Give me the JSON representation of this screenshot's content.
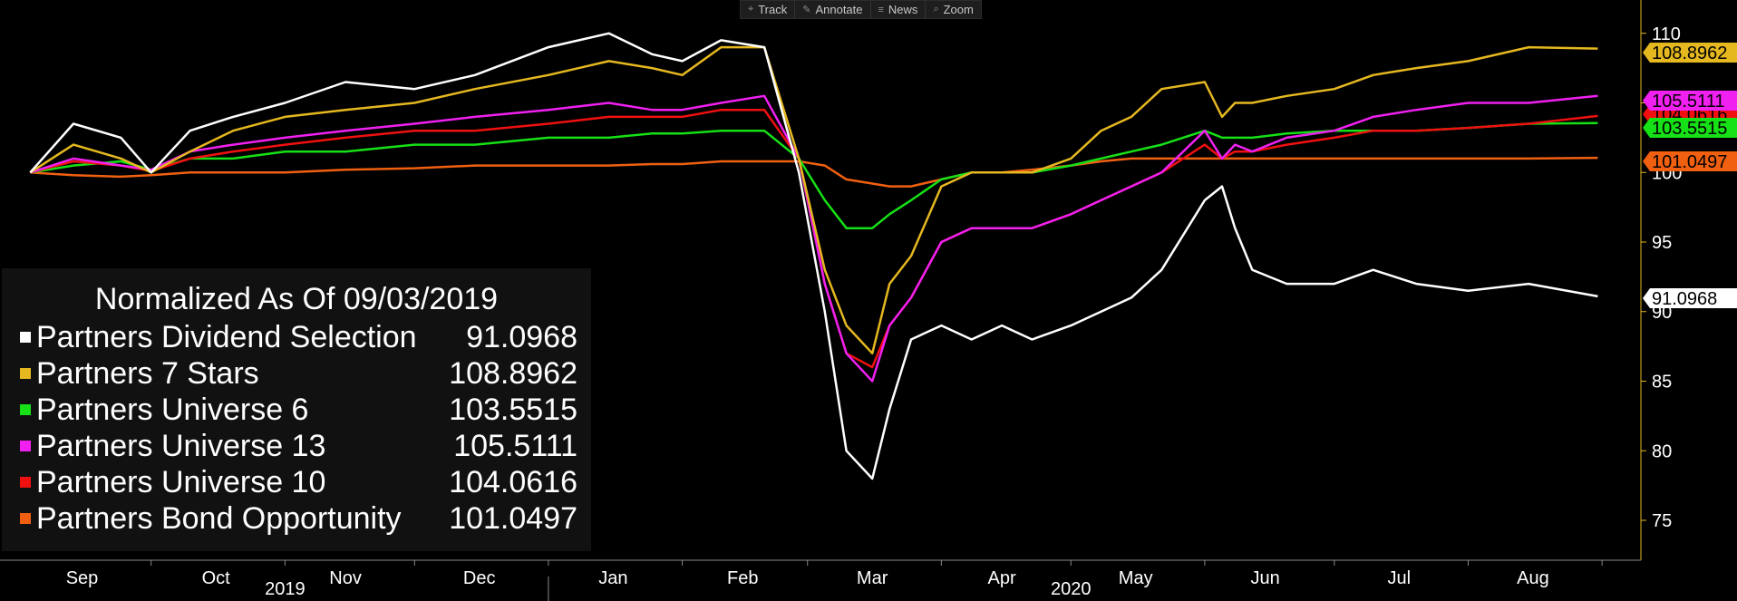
{
  "toolbar": {
    "items": [
      {
        "label": "Track",
        "icon": "crosshair-icon"
      },
      {
        "label": "Annotate",
        "icon": "pencil-icon"
      },
      {
        "label": "News",
        "icon": "news-icon"
      },
      {
        "label": "Zoom",
        "icon": "magnifier-icon"
      }
    ]
  },
  "legend": {
    "title": "Normalized As Of 09/03/2019",
    "rows": [
      {
        "name": "Partners Dividend Selection",
        "value": "91.0968",
        "color": "#ffffff"
      },
      {
        "name": "Partners 7 Stars",
        "value": "108.8962",
        "color": "#e5b820"
      },
      {
        "name": "Partners Universe 6",
        "value": "103.5515",
        "color": "#16e016"
      },
      {
        "name": "Partners Universe 13",
        "value": "105.5111",
        "color": "#f020f0"
      },
      {
        "name": "Partners Universe 10",
        "value": "104.0616",
        "color": "#f01010"
      },
      {
        "name": "Partners Bond Opportunity",
        "value": "101.0497",
        "color": "#f06010"
      }
    ]
  },
  "chart_data": {
    "type": "line",
    "title": "Normalized As Of 09/03/2019",
    "x_tick_labels": [
      "Sep",
      "Oct",
      "Nov",
      "Dec",
      "Jan",
      "Feb",
      "Mar",
      "Apr",
      "May",
      "Jun",
      "Jul",
      "Aug"
    ],
    "x_year_labels": [
      "2019",
      "2020"
    ],
    "y_ticks": [
      75,
      80,
      85,
      90,
      95,
      100,
      105,
      110
    ],
    "ylim": [
      72,
      111
    ],
    "axis_color": "#e5b820",
    "x": [
      "2019-09-03",
      "2019-09-13",
      "2019-09-24",
      "2019-10-01",
      "2019-10-10",
      "2019-10-20",
      "2019-11-01",
      "2019-11-15",
      "2019-12-01",
      "2019-12-15",
      "2020-01-01",
      "2020-01-15",
      "2020-01-25",
      "2020-02-01",
      "2020-02-10",
      "2020-02-20",
      "2020-02-28",
      "2020-03-05",
      "2020-03-10",
      "2020-03-16",
      "2020-03-20",
      "2020-03-25",
      "2020-04-01",
      "2020-04-08",
      "2020-04-15",
      "2020-04-22",
      "2020-05-01",
      "2020-05-08",
      "2020-05-15",
      "2020-05-22",
      "2020-06-01",
      "2020-06-05",
      "2020-06-08",
      "2020-06-12",
      "2020-06-20",
      "2020-07-01",
      "2020-07-10",
      "2020-07-20",
      "2020-08-01",
      "2020-08-15",
      "2020-08-31"
    ],
    "series": [
      {
        "name": "Partners Dividend Selection",
        "color": "#ffffff",
        "last_value": "91.0968",
        "values": [
          100,
          103.5,
          102.5,
          100,
          103,
          104,
          105,
          106.5,
          106,
          107,
          109,
          110,
          108.5,
          108,
          109.5,
          109,
          100,
          90,
          80,
          78,
          83,
          88,
          89,
          88,
          89,
          88,
          89,
          90,
          91,
          93,
          98,
          99,
          96,
          93,
          92,
          92,
          93,
          92,
          91.5,
          92,
          91.1
        ]
      },
      {
        "name": "Partners 7 Stars",
        "color": "#e5b820",
        "last_value": "108.8962",
        "values": [
          100,
          102,
          101,
          100,
          101.5,
          103,
          104,
          104.5,
          105,
          106,
          107,
          108,
          107.5,
          107,
          109,
          109,
          101,
          93,
          89,
          87,
          92,
          94,
          99,
          100,
          100,
          100,
          101,
          103,
          104,
          106,
          106.5,
          104,
          105,
          105,
          105.5,
          106,
          107,
          107.5,
          108,
          109,
          108.9
        ]
      },
      {
        "name": "Partners Universe 6",
        "color": "#16e016",
        "last_value": "103.5515",
        "values": [
          100,
          100.5,
          100.8,
          100.2,
          101,
          101,
          101.5,
          101.5,
          102,
          102,
          102.5,
          102.5,
          102.8,
          102.8,
          103,
          103,
          101,
          98,
          96,
          96,
          97,
          98,
          99.5,
          100,
          100,
          100,
          100.5,
          101,
          101.5,
          102,
          103,
          102.5,
          102.5,
          102.5,
          102.8,
          103,
          103,
          103,
          103.2,
          103.5,
          103.55
        ]
      },
      {
        "name": "Partners Universe 13",
        "color": "#f020f0",
        "last_value": "105.5111",
        "values": [
          100,
          101,
          100.5,
          100.2,
          101.5,
          102,
          102.5,
          103,
          103.5,
          104,
          104.5,
          105,
          104.5,
          104.5,
          105,
          105.5,
          101,
          92,
          87,
          85,
          89,
          91,
          95,
          96,
          96,
          96,
          97,
          98,
          99,
          100,
          103,
          101,
          102,
          101.5,
          102.5,
          103,
          104,
          104.5,
          105,
          105,
          105.5
        ]
      },
      {
        "name": "Partners Universe 10",
        "color": "#f01010",
        "last_value": "104.0616",
        "values": [
          100,
          100.8,
          100.5,
          100.1,
          101,
          101.5,
          102,
          102.5,
          103,
          103,
          103.5,
          104,
          104,
          104,
          104.5,
          104.5,
          101,
          92,
          87,
          86,
          89,
          91,
          95,
          96,
          96,
          96,
          97,
          98,
          99,
          100,
          102,
          101,
          101.5,
          101.5,
          102,
          102.5,
          103,
          103,
          103.2,
          103.5,
          104.06
        ]
      },
      {
        "name": "Partners Bond Opportunity",
        "color": "#f06010",
        "last_value": "101.0497",
        "values": [
          100,
          99.8,
          99.7,
          99.8,
          100,
          100,
          100,
          100.2,
          100.3,
          100.5,
          100.5,
          100.5,
          100.6,
          100.6,
          100.8,
          100.8,
          100.8,
          100.5,
          99.5,
          99.2,
          99,
          99,
          99.5,
          100,
          100,
          100.2,
          100.5,
          100.8,
          101,
          101,
          101,
          101,
          101,
          101,
          101,
          101,
          101,
          101,
          101,
          101,
          101.05
        ]
      }
    ]
  }
}
